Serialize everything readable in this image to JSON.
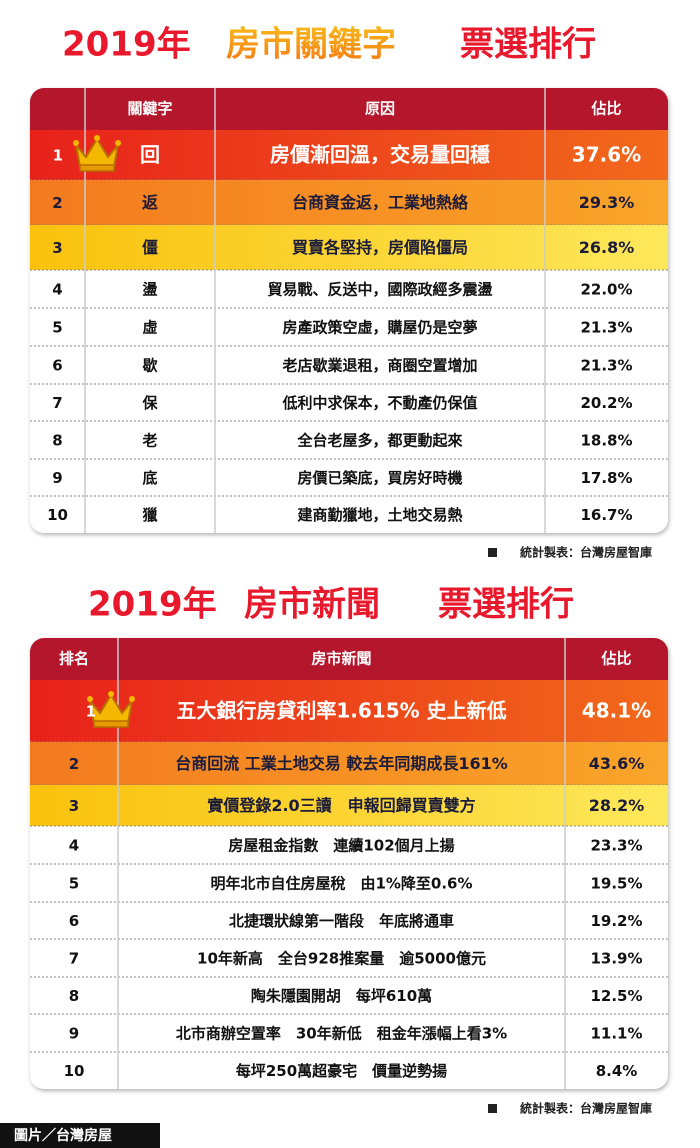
{
  "title1": {
    "year": "2019年",
    "main": "房市關鍵字",
    "tail": "票選排行"
  },
  "table1": {
    "headers": [
      "關鍵字",
      "原因",
      "佔比"
    ],
    "rows": [
      [
        "1",
        "回",
        "房價漸回溫，交易量回穩",
        "37.6%"
      ],
      [
        "2",
        "返",
        "台商資金返，工業地熱絡",
        "29.3%"
      ],
      [
        "3",
        "僵",
        "買賣各堅持，房價陷僵局",
        "26.8%"
      ],
      [
        "4",
        "盪",
        "貿易戰、反送中，國際政經多震盪",
        "22.0%"
      ],
      [
        "5",
        "虛",
        "房產政策空虛，購屋仍是空夢",
        "21.3%"
      ],
      [
        "6",
        "歇",
        "老店歇業退租，商圈空置增加",
        "21.3%"
      ],
      [
        "7",
        "保",
        "低利中求保本，不動產仍保值",
        "20.2%"
      ],
      [
        "8",
        "老",
        "全台老屋多，都更動起來",
        "18.8%"
      ],
      [
        "9",
        "底",
        "房價已築底，買房好時機",
        "17.8%"
      ],
      [
        "10",
        "獵",
        "建商勤獵地，土地交易熱",
        "16.7%"
      ]
    ]
  },
  "source1": "統計製表：台灣房屋智庫",
  "title2": {
    "year": "2019年",
    "main": "房市新聞",
    "tail": "票選排行"
  },
  "table2": {
    "headers": [
      "排名",
      "房市新聞",
      "佔比"
    ],
    "rows": [
      [
        "1",
        "五大銀行房貸利率1.615% 史上新低",
        "48.1%"
      ],
      [
        "2",
        "台商回流 工業土地交易 較去年同期成長161%",
        "43.6%"
      ],
      [
        "3",
        "實價登錄2.0三讀　申報回歸買賣雙方",
        "28.2%"
      ],
      [
        "4",
        "房屋租金指數　連續102個月上揚",
        "23.3%"
      ],
      [
        "5",
        "明年北市自住房屋稅　由1%降至0.6%",
        "19.5%"
      ],
      [
        "6",
        "北捷環狀線第一階段　年底將通車",
        "19.2%"
      ],
      [
        "7",
        "10年新高　全台928推案量　逾5000億元",
        "13.9%"
      ],
      [
        "8",
        "陶朱隱園開胡　每坪610萬",
        "12.5%"
      ],
      [
        "9",
        "北市商辦空置率　30年新低　租金年漲幅上看3%",
        "11.1%"
      ],
      [
        "10",
        "每坪250萬超豪宅　價量逆勢揚",
        "8.4%"
      ]
    ]
  },
  "source2": "統計製表：台灣房屋智庫",
  "credit": "圖片／台灣房屋"
}
